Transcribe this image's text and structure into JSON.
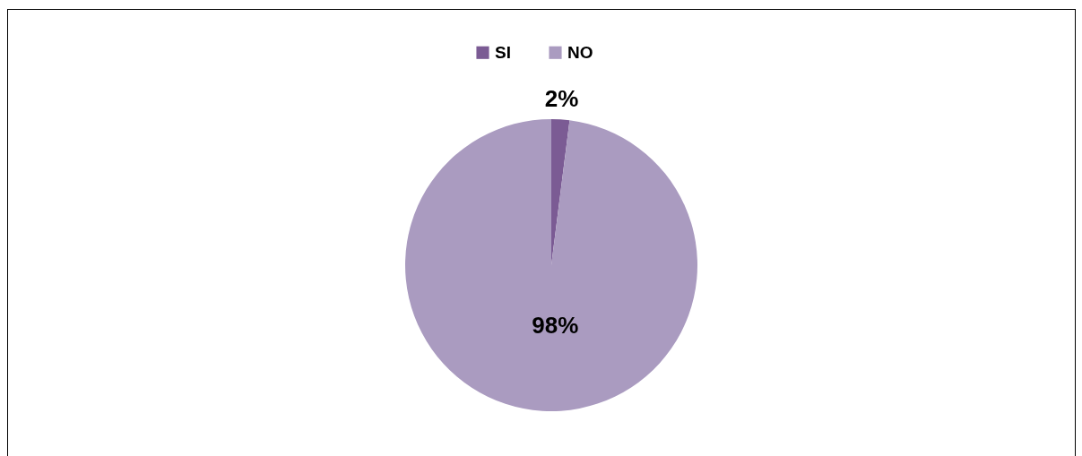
{
  "chart_data": {
    "type": "pie",
    "categories": [
      "SI",
      "NO"
    ],
    "values": [
      2,
      98
    ],
    "colors": [
      "#7b5b94",
      "#aa9bc0"
    ],
    "value_labels": [
      "2%",
      "98%"
    ],
    "legend": "top"
  }
}
